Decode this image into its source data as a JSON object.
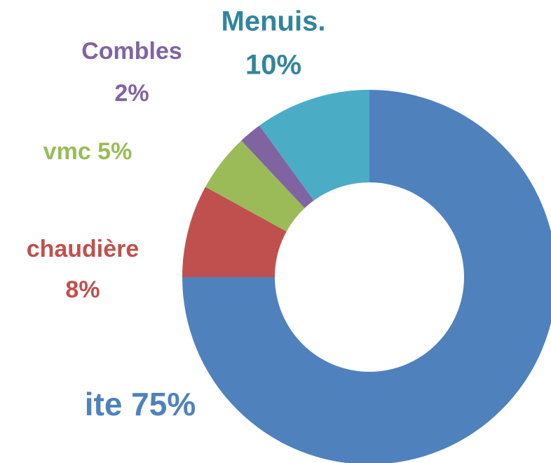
{
  "chart_data": {
    "type": "donut",
    "categories": [
      "ite",
      "chaudière",
      "vmc",
      "Combles",
      "Menuis."
    ],
    "values": [
      75,
      8,
      5,
      2,
      10
    ],
    "value_labels": [
      "75%",
      "8%",
      "5%",
      "2%",
      "10%"
    ],
    "colors": [
      "#4f81bd",
      "#c0504d",
      "#9bbb59",
      "#8064a2",
      "#4bacc6"
    ],
    "label_colors": [
      "#4f81bd",
      "#c0504d",
      "#9bbb59",
      "#8064a2",
      "#31859c"
    ]
  }
}
